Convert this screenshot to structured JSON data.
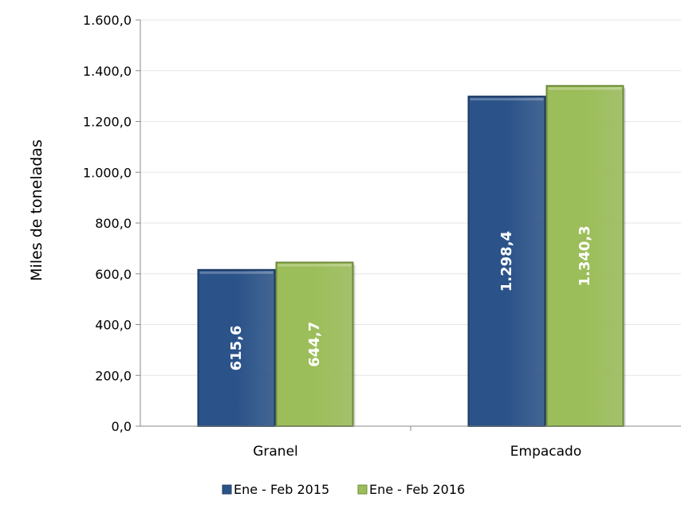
{
  "chart_data": {
    "type": "bar",
    "categories": [
      "Granel",
      "Empacado"
    ],
    "series": [
      {
        "name": "Ene - Feb 2015",
        "values": [
          615.6,
          1298.4
        ],
        "labels": [
          "615,6",
          "1.298,4"
        ],
        "color": "#2b5389"
      },
      {
        "name": "Ene - Feb 2016",
        "values": [
          644.7,
          1340.3
        ],
        "labels": [
          "644,7",
          "1.340,3"
        ],
        "color": "#9cbe5a"
      }
    ],
    "ylabel": "Miles de toneladas",
    "ylim": [
      0,
      1600
    ],
    "yticks": [
      0,
      200,
      400,
      600,
      800,
      1000,
      1200,
      1400,
      1600
    ],
    "ytick_labels": [
      "0,0",
      "200,0",
      "400,0",
      "600,0",
      "800,0",
      "1.000,0",
      "1.200,0",
      "1.400,0",
      "1.600,0"
    ],
    "grid": true,
    "legend_position": "bottom"
  }
}
